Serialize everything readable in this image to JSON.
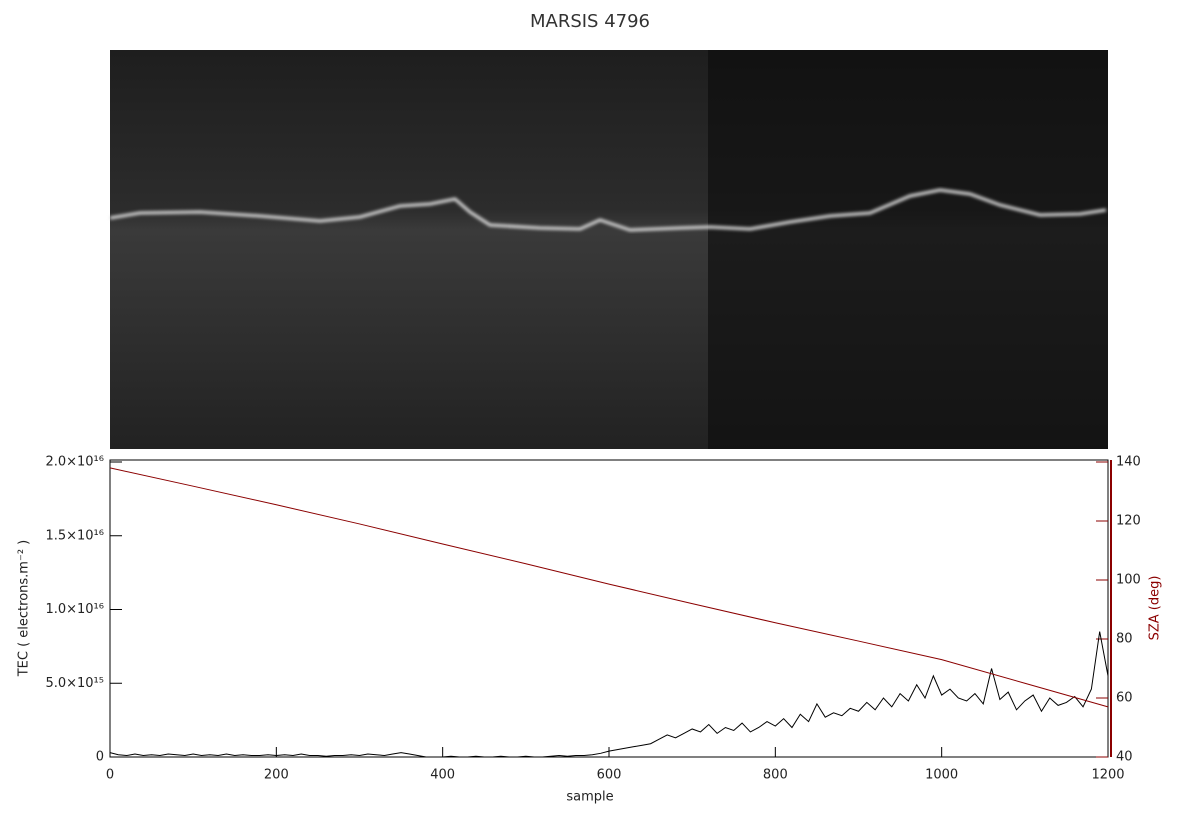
{
  "chart_data": {
    "type": "line",
    "title": "MARSIS 4796",
    "x_label": "sample",
    "y_label": "TEC ( electrons.m⁻² )",
    "y2_label": "SZA (deg)",
    "xlim": [
      0,
      1200
    ],
    "xticks": [
      0,
      200,
      400,
      600,
      800,
      1000,
      1200
    ],
    "ylim": [
      0,
      2e+16
    ],
    "yticks": [
      0,
      {
        "value": 5000000000000000.0,
        "label": "5.0×10¹⁵"
      },
      {
        "value": 1e+16,
        "label": "1.0×10¹⁶"
      },
      {
        "value": 1.5e+16,
        "label": "1.5×10¹⁶"
      },
      {
        "value": 2e+16,
        "label": "2.0×10¹⁶"
      }
    ],
    "y2lim": [
      40,
      140
    ],
    "y2ticks": [
      40,
      60,
      80,
      100,
      120,
      140
    ],
    "y2_color": "#8b0000",
    "series": [
      {
        "name": "TEC",
        "color": "#000000",
        "x": [
          0,
          10,
          20,
          30,
          40,
          50,
          60,
          70,
          80,
          90,
          100,
          110,
          120,
          130,
          140,
          150,
          160,
          170,
          180,
          190,
          200,
          210,
          220,
          230,
          240,
          250,
          260,
          270,
          280,
          290,
          300,
          310,
          320,
          330,
          340,
          350,
          360,
          370,
          380,
          390,
          400,
          410,
          420,
          430,
          440,
          450,
          460,
          470,
          480,
          490,
          500,
          510,
          520,
          530,
          540,
          550,
          560,
          570,
          580,
          590,
          600,
          610,
          620,
          630,
          640,
          650,
          660,
          670,
          680,
          690,
          700,
          710,
          720,
          730,
          740,
          750,
          760,
          770,
          780,
          790,
          800,
          810,
          820,
          830,
          840,
          850,
          860,
          870,
          880,
          890,
          900,
          910,
          920,
          930,
          940,
          950,
          960,
          970,
          980,
          990,
          1000,
          1010,
          1020,
          1030,
          1040,
          1050,
          1060,
          1070,
          1080,
          1090,
          1100,
          1110,
          1120,
          1130,
          1140,
          1150,
          1160,
          1170,
          1180,
          1190,
          1200
        ],
        "values": [
          300000000000000.0,
          150000000000000.0,
          100000000000000.0,
          200000000000000.0,
          100000000000000.0,
          150000000000000.0,
          100000000000000.0,
          200000000000000.0,
          150000000000000.0,
          100000000000000.0,
          200000000000000.0,
          100000000000000.0,
          150000000000000.0,
          100000000000000.0,
          200000000000000.0,
          100000000000000.0,
          150000000000000.0,
          100000000000000.0,
          100000000000000.0,
          150000000000000.0,
          100000000000000.0,
          150000000000000.0,
          100000000000000.0,
          200000000000000.0,
          100000000000000.0,
          100000000000000.0,
          50000000000000.0,
          100000000000000.0,
          100000000000000.0,
          150000000000000.0,
          100000000000000.0,
          200000000000000.0,
          150000000000000.0,
          100000000000000.0,
          200000000000000.0,
          300000000000000.0,
          200000000000000.0,
          100000000000000.0,
          0.0,
          0.0,
          0.0,
          50000000000000.0,
          0.0,
          0.0,
          50000000000000.0,
          0.0,
          0.0,
          50000000000000.0,
          0.0,
          0.0,
          50000000000000.0,
          0.0,
          0.0,
          50000000000000.0,
          100000000000000.0,
          50000000000000.0,
          100000000000000.0,
          100000000000000.0,
          150000000000000.0,
          250000000000000.0,
          400000000000000.0,
          500000000000000.0,
          600000000000000.0,
          700000000000000.0,
          800000000000000.0,
          900000000000000.0,
          1200000000000000.0,
          1500000000000000.0,
          1300000000000000.0,
          1600000000000000.0,
          1900000000000000.0,
          1700000000000000.0,
          2200000000000000.0,
          1600000000000000.0,
          2000000000000000.0,
          1800000000000000.0,
          2300000000000000.0,
          1700000000000000.0,
          2000000000000000.0,
          2400000000000000.0,
          2100000000000000.0,
          2600000000000000.0,
          2000000000000000.0,
          2900000000000000.0,
          2400000000000000.0,
          3600000000000000.0,
          2700000000000000.0,
          3000000000000000.0,
          2800000000000000.0,
          3300000000000000.0,
          3100000000000000.0,
          3700000000000000.0,
          3200000000000000.0,
          4000000000000000.0,
          3400000000000000.0,
          4300000000000000.0,
          3800000000000000.0,
          4900000000000000.0,
          4000000000000000.0,
          5500000000000000.0,
          4200000000000000.0,
          4600000000000000.0,
          4000000000000000.0,
          3800000000000000.0,
          4300000000000000.0,
          3600000000000000.0,
          6000000000000000.0,
          3900000000000000.0,
          4400000000000000.0,
          3200000000000000.0,
          3800000000000000.0,
          4200000000000000.0,
          3100000000000000.0,
          4000000000000000.0,
          3500000000000000.0,
          3700000000000000.0,
          4100000000000000.0,
          3400000000000000.0,
          4600000000000000.0,
          8500000000000000.0,
          5500000000000000.0
        ]
      },
      {
        "name": "SZA",
        "color": "#8b0000",
        "axis": "y2",
        "x": [
          0,
          100,
          200,
          300,
          400,
          500,
          600,
          700,
          800,
          900,
          1000,
          1100,
          1200
        ],
        "values": [
          138,
          131.8,
          125.5,
          119,
          112.2,
          105.5,
          98.6,
          92,
          85.5,
          79.3,
          73,
          65,
          57
        ]
      }
    ]
  }
}
